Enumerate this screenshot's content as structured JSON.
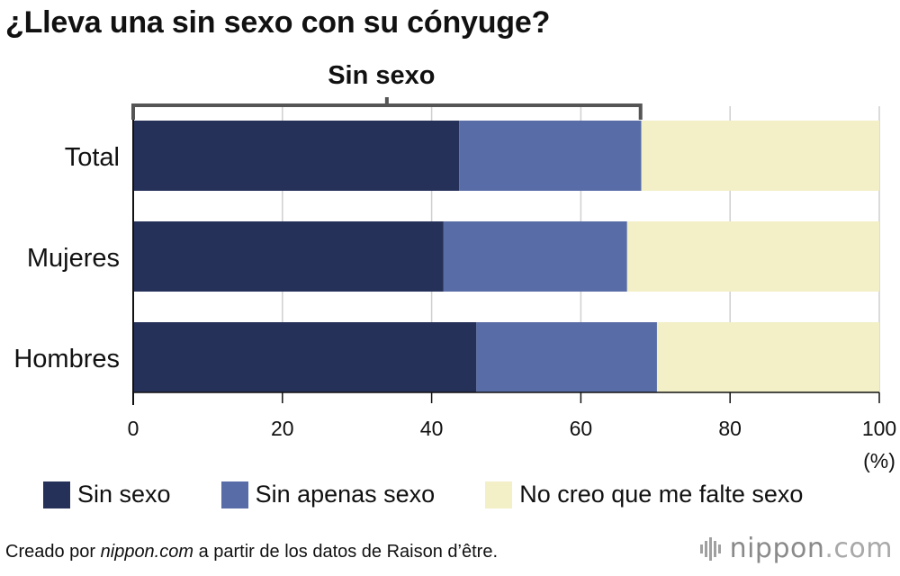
{
  "title": "¿Lleva una sin sexo con su cónyuge?",
  "chart_data": {
    "type": "bar",
    "orientation": "horizontal",
    "stacked": true,
    "categories": [
      "Total",
      "Mujeres",
      "Hombres"
    ],
    "series": [
      {
        "name": "Sin sexo",
        "values": [
          43.7,
          41.6,
          46.0
        ],
        "color": "#263159"
      },
      {
        "name": "Sin apenas sexo",
        "values": [
          24.4,
          24.6,
          24.2
        ],
        "color": "#586da8"
      },
      {
        "name": "No creo que me falte sexo",
        "values": [
          31.9,
          33.8,
          29.8
        ],
        "color": "#f3efc6"
      }
    ],
    "xlim": [
      0,
      100
    ],
    "xticks": [
      "0",
      "20",
      "40",
      "60",
      "80",
      "100"
    ],
    "xunit": "(%)",
    "grid": true,
    "legend_position": "bottom",
    "annotation": {
      "label": "Sin sexo",
      "range": [
        0,
        68
      ]
    }
  },
  "footer": {
    "prefix": "Creado por ",
    "site": "nippon.com",
    "suffix": " a partir de los datos de Raison d’être."
  },
  "logo": {
    "name": "nippon",
    "dot": ".",
    "tld": "com"
  }
}
